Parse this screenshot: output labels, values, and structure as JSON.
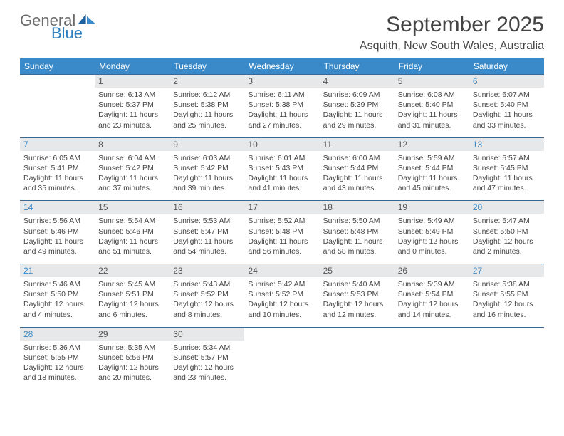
{
  "logo": {
    "word1": "General",
    "word2": "Blue"
  },
  "header": {
    "month": "September 2025",
    "location": "Asquith, New South Wales, Australia"
  },
  "colors": {
    "header_bg": "#3a8ac9",
    "header_text": "#ffffff",
    "daynum_bg": "#e7e8e9",
    "cell_border": "#3a6a93",
    "logo_grey": "#6b6b6b",
    "logo_blue": "#2f7fbf"
  },
  "weekdays": [
    "Sunday",
    "Monday",
    "Tuesday",
    "Wednesday",
    "Thursday",
    "Friday",
    "Saturday"
  ],
  "weeks": [
    [
      {
        "n": "",
        "sunrise": "",
        "sunset": "",
        "daylight1": "",
        "daylight2": ""
      },
      {
        "n": "1",
        "sunrise": "Sunrise: 6:13 AM",
        "sunset": "Sunset: 5:37 PM",
        "daylight1": "Daylight: 11 hours",
        "daylight2": "and 23 minutes."
      },
      {
        "n": "2",
        "sunrise": "Sunrise: 6:12 AM",
        "sunset": "Sunset: 5:38 PM",
        "daylight1": "Daylight: 11 hours",
        "daylight2": "and 25 minutes."
      },
      {
        "n": "3",
        "sunrise": "Sunrise: 6:11 AM",
        "sunset": "Sunset: 5:38 PM",
        "daylight1": "Daylight: 11 hours",
        "daylight2": "and 27 minutes."
      },
      {
        "n": "4",
        "sunrise": "Sunrise: 6:09 AM",
        "sunset": "Sunset: 5:39 PM",
        "daylight1": "Daylight: 11 hours",
        "daylight2": "and 29 minutes."
      },
      {
        "n": "5",
        "sunrise": "Sunrise: 6:08 AM",
        "sunset": "Sunset: 5:40 PM",
        "daylight1": "Daylight: 11 hours",
        "daylight2": "and 31 minutes."
      },
      {
        "n": "6",
        "sunrise": "Sunrise: 6:07 AM",
        "sunset": "Sunset: 5:40 PM",
        "daylight1": "Daylight: 11 hours",
        "daylight2": "and 33 minutes."
      }
    ],
    [
      {
        "n": "7",
        "sunrise": "Sunrise: 6:05 AM",
        "sunset": "Sunset: 5:41 PM",
        "daylight1": "Daylight: 11 hours",
        "daylight2": "and 35 minutes."
      },
      {
        "n": "8",
        "sunrise": "Sunrise: 6:04 AM",
        "sunset": "Sunset: 5:42 PM",
        "daylight1": "Daylight: 11 hours",
        "daylight2": "and 37 minutes."
      },
      {
        "n": "9",
        "sunrise": "Sunrise: 6:03 AM",
        "sunset": "Sunset: 5:42 PM",
        "daylight1": "Daylight: 11 hours",
        "daylight2": "and 39 minutes."
      },
      {
        "n": "10",
        "sunrise": "Sunrise: 6:01 AM",
        "sunset": "Sunset: 5:43 PM",
        "daylight1": "Daylight: 11 hours",
        "daylight2": "and 41 minutes."
      },
      {
        "n": "11",
        "sunrise": "Sunrise: 6:00 AM",
        "sunset": "Sunset: 5:44 PM",
        "daylight1": "Daylight: 11 hours",
        "daylight2": "and 43 minutes."
      },
      {
        "n": "12",
        "sunrise": "Sunrise: 5:59 AM",
        "sunset": "Sunset: 5:44 PM",
        "daylight1": "Daylight: 11 hours",
        "daylight2": "and 45 minutes."
      },
      {
        "n": "13",
        "sunrise": "Sunrise: 5:57 AM",
        "sunset": "Sunset: 5:45 PM",
        "daylight1": "Daylight: 11 hours",
        "daylight2": "and 47 minutes."
      }
    ],
    [
      {
        "n": "14",
        "sunrise": "Sunrise: 5:56 AM",
        "sunset": "Sunset: 5:46 PM",
        "daylight1": "Daylight: 11 hours",
        "daylight2": "and 49 minutes."
      },
      {
        "n": "15",
        "sunrise": "Sunrise: 5:54 AM",
        "sunset": "Sunset: 5:46 PM",
        "daylight1": "Daylight: 11 hours",
        "daylight2": "and 51 minutes."
      },
      {
        "n": "16",
        "sunrise": "Sunrise: 5:53 AM",
        "sunset": "Sunset: 5:47 PM",
        "daylight1": "Daylight: 11 hours",
        "daylight2": "and 54 minutes."
      },
      {
        "n": "17",
        "sunrise": "Sunrise: 5:52 AM",
        "sunset": "Sunset: 5:48 PM",
        "daylight1": "Daylight: 11 hours",
        "daylight2": "and 56 minutes."
      },
      {
        "n": "18",
        "sunrise": "Sunrise: 5:50 AM",
        "sunset": "Sunset: 5:48 PM",
        "daylight1": "Daylight: 11 hours",
        "daylight2": "and 58 minutes."
      },
      {
        "n": "19",
        "sunrise": "Sunrise: 5:49 AM",
        "sunset": "Sunset: 5:49 PM",
        "daylight1": "Daylight: 12 hours",
        "daylight2": "and 0 minutes."
      },
      {
        "n": "20",
        "sunrise": "Sunrise: 5:47 AM",
        "sunset": "Sunset: 5:50 PM",
        "daylight1": "Daylight: 12 hours",
        "daylight2": "and 2 minutes."
      }
    ],
    [
      {
        "n": "21",
        "sunrise": "Sunrise: 5:46 AM",
        "sunset": "Sunset: 5:50 PM",
        "daylight1": "Daylight: 12 hours",
        "daylight2": "and 4 minutes."
      },
      {
        "n": "22",
        "sunrise": "Sunrise: 5:45 AM",
        "sunset": "Sunset: 5:51 PM",
        "daylight1": "Daylight: 12 hours",
        "daylight2": "and 6 minutes."
      },
      {
        "n": "23",
        "sunrise": "Sunrise: 5:43 AM",
        "sunset": "Sunset: 5:52 PM",
        "daylight1": "Daylight: 12 hours",
        "daylight2": "and 8 minutes."
      },
      {
        "n": "24",
        "sunrise": "Sunrise: 5:42 AM",
        "sunset": "Sunset: 5:52 PM",
        "daylight1": "Daylight: 12 hours",
        "daylight2": "and 10 minutes."
      },
      {
        "n": "25",
        "sunrise": "Sunrise: 5:40 AM",
        "sunset": "Sunset: 5:53 PM",
        "daylight1": "Daylight: 12 hours",
        "daylight2": "and 12 minutes."
      },
      {
        "n": "26",
        "sunrise": "Sunrise: 5:39 AM",
        "sunset": "Sunset: 5:54 PM",
        "daylight1": "Daylight: 12 hours",
        "daylight2": "and 14 minutes."
      },
      {
        "n": "27",
        "sunrise": "Sunrise: 5:38 AM",
        "sunset": "Sunset: 5:55 PM",
        "daylight1": "Daylight: 12 hours",
        "daylight2": "and 16 minutes."
      }
    ],
    [
      {
        "n": "28",
        "sunrise": "Sunrise: 5:36 AM",
        "sunset": "Sunset: 5:55 PM",
        "daylight1": "Daylight: 12 hours",
        "daylight2": "and 18 minutes."
      },
      {
        "n": "29",
        "sunrise": "Sunrise: 5:35 AM",
        "sunset": "Sunset: 5:56 PM",
        "daylight1": "Daylight: 12 hours",
        "daylight2": "and 20 minutes."
      },
      {
        "n": "30",
        "sunrise": "Sunrise: 5:34 AM",
        "sunset": "Sunset: 5:57 PM",
        "daylight1": "Daylight: 12 hours",
        "daylight2": "and 23 minutes."
      },
      {
        "n": "",
        "sunrise": "",
        "sunset": "",
        "daylight1": "",
        "daylight2": ""
      },
      {
        "n": "",
        "sunrise": "",
        "sunset": "",
        "daylight1": "",
        "daylight2": ""
      },
      {
        "n": "",
        "sunrise": "",
        "sunset": "",
        "daylight1": "",
        "daylight2": ""
      },
      {
        "n": "",
        "sunrise": "",
        "sunset": "",
        "daylight1": "",
        "daylight2": ""
      }
    ]
  ]
}
